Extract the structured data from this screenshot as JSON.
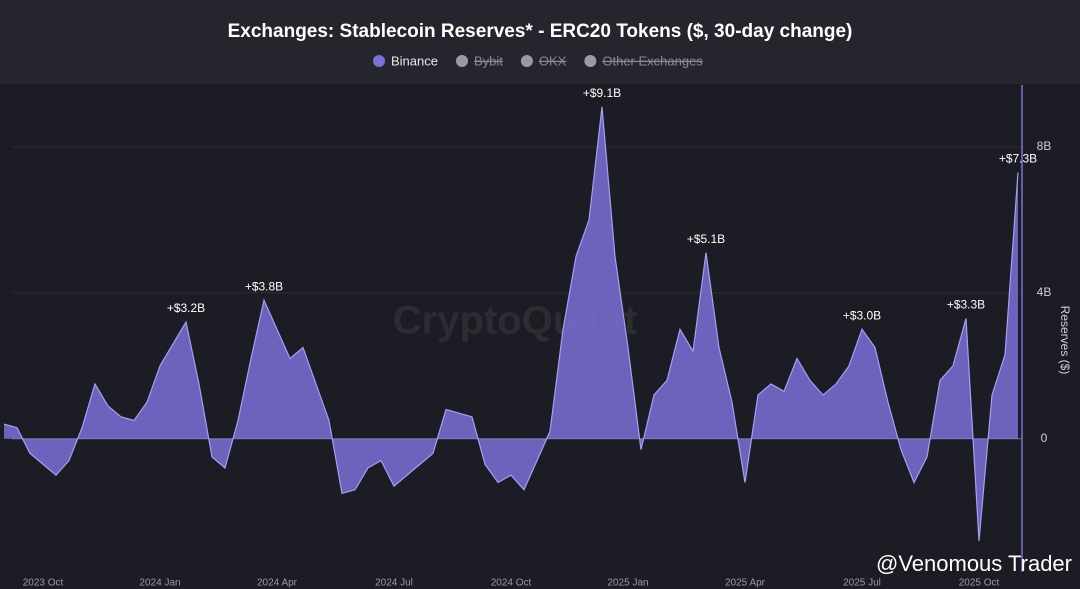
{
  "chart_data": {
    "type": "area",
    "title": "Exchanges: Stablecoin Reserves* - ERC20 Tokens ($, 30-day change)",
    "y_label": "Reserves ($)",
    "watermark": "CryptoQuant",
    "credit": "@Venomous Trader",
    "categories": [
      null,
      null,
      null,
      "2023 Oct",
      null,
      null,
      null,
      null,
      null,
      null,
      null,
      null,
      "2024 Jan",
      null,
      null,
      null,
      null,
      null,
      null,
      null,
      null,
      "2024 Apr",
      null,
      null,
      null,
      null,
      null,
      null,
      null,
      null,
      "2024 Jul",
      null,
      null,
      null,
      null,
      null,
      null,
      null,
      null,
      "2024 Oct",
      null,
      null,
      null,
      null,
      null,
      null,
      null,
      null,
      "2025 Jan",
      null,
      null,
      null,
      null,
      null,
      null,
      null,
      null,
      "2025 Apr",
      null,
      null,
      null,
      null,
      null,
      null,
      null,
      null,
      "2025 Jul",
      null,
      null,
      null,
      null,
      null,
      null,
      null,
      null,
      "2025 Oct",
      null,
      null,
      null
    ],
    "series": [
      {
        "name": "Binance",
        "color": "#7b70d8",
        "values": [
          0.4,
          0.3,
          -0.4,
          -0.7,
          -1.0,
          -0.6,
          0.3,
          1.5,
          0.9,
          0.6,
          0.5,
          1.0,
          2.0,
          2.6,
          3.2,
          1.5,
          -0.5,
          -0.8,
          0.5,
          2.2,
          3.8,
          3.0,
          2.2,
          2.5,
          1.5,
          0.5,
          -1.5,
          -1.4,
          -0.8,
          -0.6,
          -1.3,
          -1.0,
          -0.7,
          -0.4,
          0.8,
          0.7,
          0.6,
          -0.7,
          -1.2,
          -1.0,
          -1.4,
          -0.6,
          0.2,
          3.0,
          5.0,
          6.0,
          9.1,
          5.0,
          2.5,
          -0.3,
          1.2,
          1.6,
          3.0,
          2.4,
          5.1,
          2.5,
          1.0,
          -1.2,
          1.2,
          1.5,
          1.3,
          2.2,
          1.6,
          1.2,
          1.5,
          2.0,
          3.0,
          2.5,
          1.0,
          -0.3,
          -1.2,
          -0.5,
          1.6,
          2.0,
          3.3,
          -2.8,
          1.2,
          2.3,
          7.3
        ],
        "value_labels": [
          null,
          null,
          null,
          null,
          null,
          null,
          null,
          null,
          null,
          null,
          null,
          null,
          null,
          null,
          "+$3.2B",
          null,
          null,
          null,
          null,
          null,
          "+$3.8B",
          null,
          null,
          null,
          null,
          null,
          null,
          null,
          null,
          null,
          null,
          null,
          null,
          null,
          null,
          null,
          null,
          null,
          null,
          null,
          null,
          null,
          null,
          null,
          null,
          null,
          "+$9.1B",
          null,
          null,
          null,
          null,
          null,
          null,
          null,
          "+$5.1B",
          null,
          null,
          null,
          null,
          null,
          null,
          null,
          null,
          null,
          null,
          null,
          "+$3.0B",
          null,
          null,
          null,
          null,
          null,
          null,
          null,
          "+$3.3B",
          null,
          null,
          null,
          "+$7.3B"
        ]
      }
    ],
    "hidden_series": [
      {
        "name": "Bybit"
      },
      {
        "name": "OKX"
      },
      {
        "name": "Other Exchanges"
      }
    ],
    "ylim": [
      -3.6,
      9.7
    ],
    "yticks": [
      0,
      {
        "value": 4,
        "label": "4B"
      },
      {
        "value": 8,
        "label": "8B"
      }
    ],
    "grid": true
  }
}
